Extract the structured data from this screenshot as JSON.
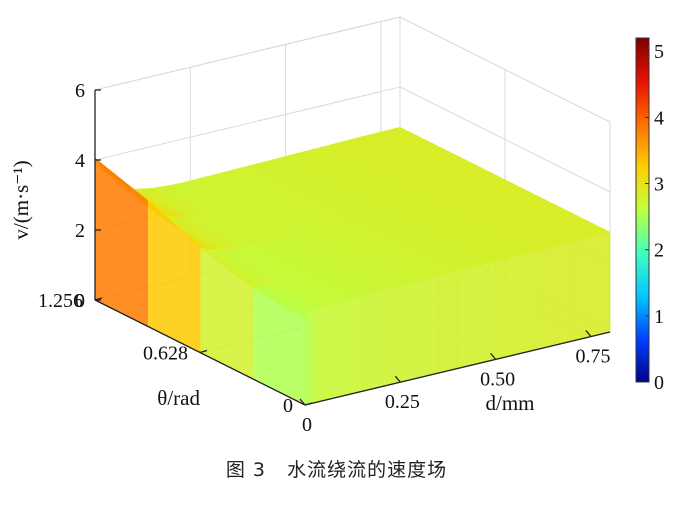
{
  "chart_data": {
    "type": "surface",
    "caption": "图 3   水流绕流的速度场",
    "xlabel": "d/mm",
    "ylabel": "θ/rad",
    "zlabel": "v/(m·s⁻¹)",
    "x_ticks": [
      "0",
      "0.25",
      "0.50",
      "0.75"
    ],
    "y_ticks": [
      "0",
      "0.628",
      "1.256"
    ],
    "z_ticks": [
      "0",
      "2",
      "4",
      "6"
    ],
    "xlim": [
      0,
      0.8
    ],
    "ylim": [
      0,
      1.256
    ],
    "zlim": [
      0,
      6
    ],
    "colorbar": {
      "range": [
        0,
        5.2
      ],
      "ticks": [
        "0",
        "1",
        "2",
        "3",
        "4",
        "5"
      ],
      "colors": [
        "#00008f",
        "#0040ff",
        "#00c8ff",
        "#40ffbf",
        "#bfff40",
        "#ffd000",
        "#ff7000",
        "#e81000",
        "#800000"
      ]
    },
    "d": [
      0,
      0.02,
      0.05,
      0.1,
      0.15,
      0.2,
      0.25,
      0.3,
      0.35,
      0.4,
      0.5,
      0.6,
      0.7,
      0.8
    ],
    "theta": [
      0,
      0.314,
      0.628,
      0.942,
      1.256
    ],
    "velocity": [
      [
        2.45,
        2.65,
        2.7,
        2.7,
        2.72,
        2.75,
        2.75,
        2.75,
        2.78,
        2.8,
        2.8,
        2.82,
        2.85,
        2.85
      ],
      [
        2.6,
        2.6,
        2.62,
        2.65,
        2.68,
        2.7,
        2.72,
        2.72,
        2.75,
        2.78,
        2.8,
        2.82,
        2.84,
        2.85
      ],
      [
        3.0,
        2.9,
        2.8,
        2.7,
        2.72,
        2.74,
        2.75,
        2.76,
        2.77,
        2.78,
        2.8,
        2.82,
        2.84,
        2.85
      ],
      [
        3.6,
        3.2,
        3.0,
        2.85,
        2.78,
        2.75,
        2.75,
        2.76,
        2.77,
        2.78,
        2.8,
        2.82,
        2.84,
        2.85
      ],
      [
        4.05,
        3.7,
        3.3,
        2.9,
        2.8,
        2.76,
        2.75,
        2.76,
        2.77,
        2.78,
        2.8,
        2.82,
        2.84,
        2.85
      ]
    ]
  }
}
